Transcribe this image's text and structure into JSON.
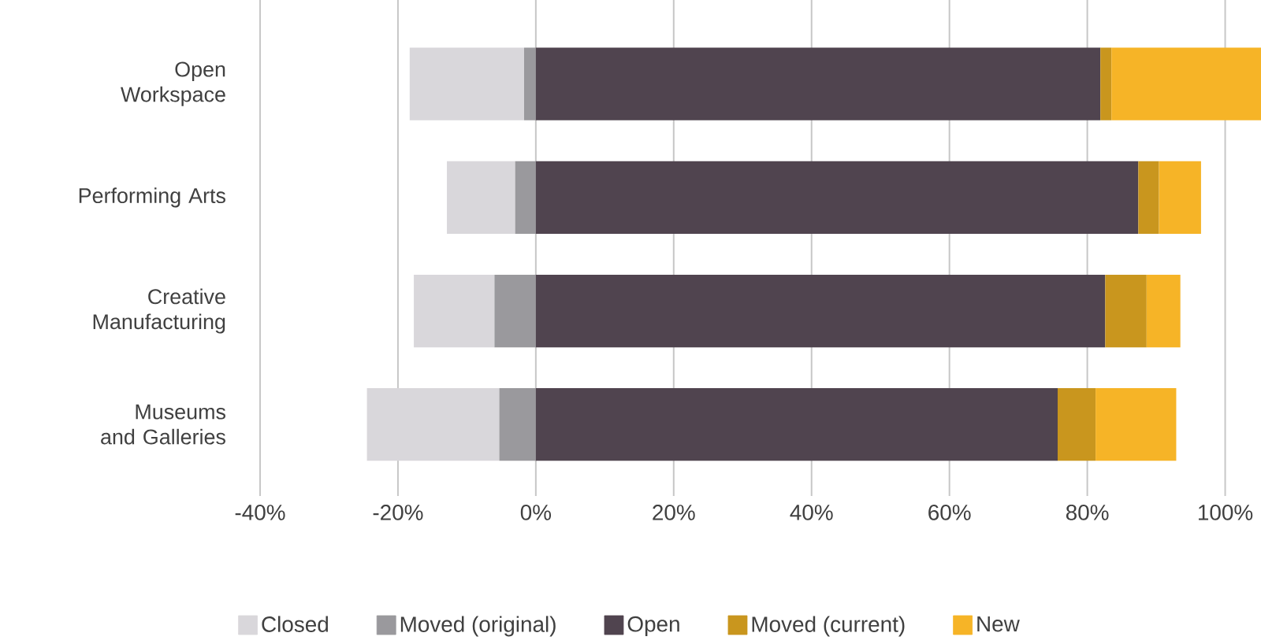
{
  "chart_data": {
    "type": "bar",
    "orientation": "horizontal",
    "categories": [
      "Open Workspace",
      "Performing Arts",
      "Creative Manufacturing",
      "Museums and Galleries"
    ],
    "xlim": [
      -40,
      105.2
    ],
    "xticks": [
      {
        "value": -40,
        "label": "-40%"
      },
      {
        "value": -20,
        "label": "-20%"
      },
      {
        "value": 0,
        "label": "0%"
      },
      {
        "value": 20,
        "label": "20%"
      },
      {
        "value": 40,
        "label": "40%"
      },
      {
        "value": 60,
        "label": "60%"
      },
      {
        "value": 80,
        "label": "80%"
      },
      {
        "value": 100,
        "label": "100%"
      }
    ],
    "grid": "x",
    "legend": "bottom",
    "series": [
      {
        "name": "Closed",
        "color": "#d9d7db",
        "values": [
          -16.6,
          -9.9,
          -11.7,
          -19.2
        ],
        "base": [
          -1.7,
          -3.0,
          -6.0,
          -5.3
        ]
      },
      {
        "name": "Moved (original)",
        "color": "#9a999d",
        "values": [
          -1.7,
          -3.0,
          -6.0,
          -5.3
        ],
        "base": [
          0,
          0,
          0,
          0
        ]
      },
      {
        "name": "Open",
        "color": "#50444f",
        "values": [
          81.9,
          87.4,
          82.6,
          75.7
        ],
        "base": [
          0,
          0,
          0,
          0
        ]
      },
      {
        "name": "Moved (current)",
        "color": "#c9961e",
        "values": [
          1.6,
          3.0,
          6.0,
          5.5
        ],
        "base": [
          81.9,
          87.4,
          82.6,
          75.7
        ]
      },
      {
        "name": "New",
        "color": "#f6b427",
        "values": [
          22.2,
          6.1,
          4.9,
          11.7
        ],
        "base": [
          83.5,
          90.4,
          88.6,
          81.2
        ]
      }
    ]
  }
}
